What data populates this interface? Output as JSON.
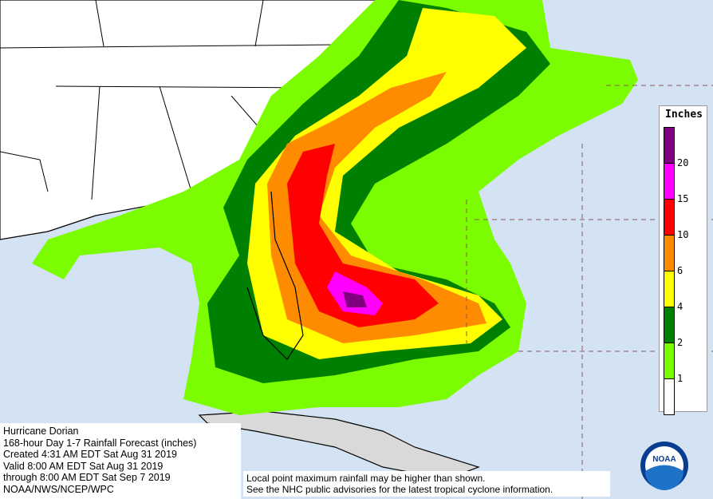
{
  "info": {
    "lines": [
      "Hurricane Dorian",
      "168-hour Day 1-7 Rainfall Forecast (inches)",
      "Created 4:31 AM EDT Sat Aug 31 2019",
      "Valid 8:00 AM EDT Sat Aug 31 2019",
      "through 8:00 AM EDT Sat Sep 7 2019",
      "NOAA/NWS/NCEP/WPC"
    ]
  },
  "legend": {
    "title": "Inches",
    "colors": [
      "#800080",
      "#ff00ff",
      "#ff0000",
      "#ff8c00",
      "#ffff00",
      "#008000",
      "#7cfc00",
      "#ffffff"
    ],
    "labels": [
      "20",
      "15",
      "10",
      "6",
      "4",
      "2",
      "1"
    ]
  },
  "disclaimer": {
    "lines": [
      "Local point maximum rainfall may be higher than shown.",
      "See the NHC public advisories for the latest tropical cyclone information."
    ]
  },
  "logo": {
    "text": "NOAA"
  }
}
